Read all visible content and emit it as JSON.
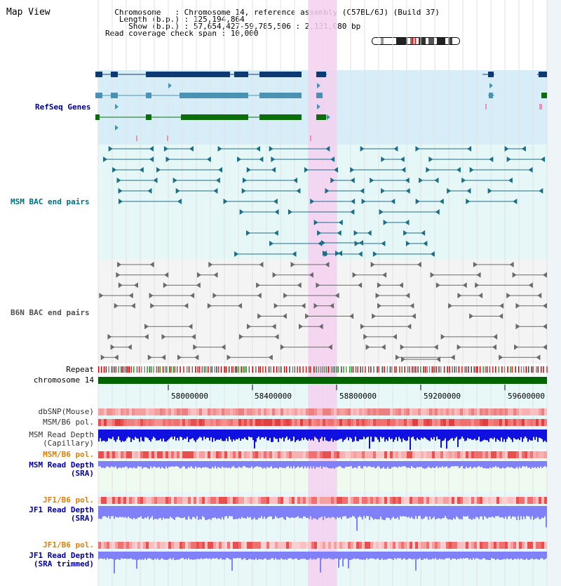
{
  "app": {
    "title": "Map View"
  },
  "header": {
    "chromosome_label": "  Chromosome   : ",
    "chromosome_value": "Chromosome 14, reference assembly (C57BL/6J) (Build 37)",
    "length_label": "   Length (b.p.) : ",
    "length_value": "125,194,864",
    "show_label": "     Show (b.p.) : ",
    "show_value": "57,654,427-59,785,506 : 2,131,080 bp",
    "span_label": "Read coverage check span : ",
    "span_value": "10,000"
  },
  "tracks": {
    "refseq": {
      "label": "RefSeq Genes",
      "color": "#00008b"
    },
    "msm_bac": {
      "label": "MSM BAC end pairs",
      "color": "#007080"
    },
    "b6n_bac": {
      "label": "B6N BAC end pairs",
      "color": "#505050"
    },
    "repeat": {
      "label": "Repeat"
    },
    "chromosome": {
      "label": "chromosome 14"
    },
    "dbsnp": {
      "label": "dbSNP(Mouse)"
    },
    "msm_b6_pol": {
      "label": "MSM/B6 pol."
    },
    "msm_depth_cap": {
      "label": "MSM Read Depth",
      "sublabel": "(Capillary)"
    },
    "msm_b6_pol_sra": {
      "label": "MSM/B6 pol.",
      "color": "#e08000"
    },
    "msm_depth_sra": {
      "label": "MSM Read Depth",
      "sublabel": "(SRA)",
      "color": "#0000a0"
    },
    "jf1_b6_pol": {
      "label": "JF1/B6 pol.",
      "color": "#e08000"
    },
    "jf1_depth_sra": {
      "label": "JF1 Read Depth",
      "sublabel": "(SRA)",
      "color": "#0000a0"
    },
    "jf1_b6_pol_trim": {
      "label": "JF1/B6 pol.",
      "color": "#e08000"
    },
    "jf1_depth_trim": {
      "label": "JF1 Read Depth",
      "sublabel": "(SRA trimmed)",
      "color": "#0000a0"
    }
  },
  "axis": {
    "ticks": [
      "58000000",
      "58400000",
      "58800000",
      "59200000",
      "59600000"
    ]
  },
  "colors": {
    "highlight": "#f5d0f0",
    "refseq_bg": "#d7eef8",
    "bac_bg": "#e6f7f8",
    "gene_dark": "#0d3a73",
    "gene_mid": "#4a92b4",
    "gene_green": "#0b6e0b",
    "chromosome_bar": "#006400",
    "depth_dark": "#1010e0",
    "depth_light": "#8080f8"
  }
}
